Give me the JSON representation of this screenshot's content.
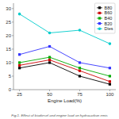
{
  "chart_data": {
    "type": "line",
    "title": "Fig.1. Effect of biodiesel and engine load on hydrocarbon emis",
    "xlabel": "Engine Load(%)",
    "x": [
      25,
      50,
      75,
      100
    ],
    "series": [
      {
        "name": "B80",
        "color": "#000000",
        "marker": "square",
        "values": [
          8,
          10,
          5,
          2
        ]
      },
      {
        "name": "B60",
        "color": "#cc0000",
        "marker": "square",
        "values": [
          9,
          11,
          7,
          3
        ]
      },
      {
        "name": "B40",
        "color": "#00aa00",
        "marker": "square",
        "values": [
          10,
          12,
          8,
          5
        ]
      },
      {
        "name": "B20",
        "color": "#3333ff",
        "marker": "square",
        "values": [
          13,
          16,
          10,
          8
        ]
      },
      {
        "name": "Dies",
        "color": "#00cccc",
        "marker": "circle",
        "values": [
          28,
          21,
          22,
          17
        ]
      }
    ],
    "xlim": [
      20,
      105
    ],
    "ylim": [
      0,
      32
    ],
    "xticks": [
      25,
      50,
      75,
      100
    ],
    "yticks": [
      0,
      5,
      10,
      15,
      20,
      25,
      30
    ],
    "grid": false,
    "legend": "upper right"
  }
}
